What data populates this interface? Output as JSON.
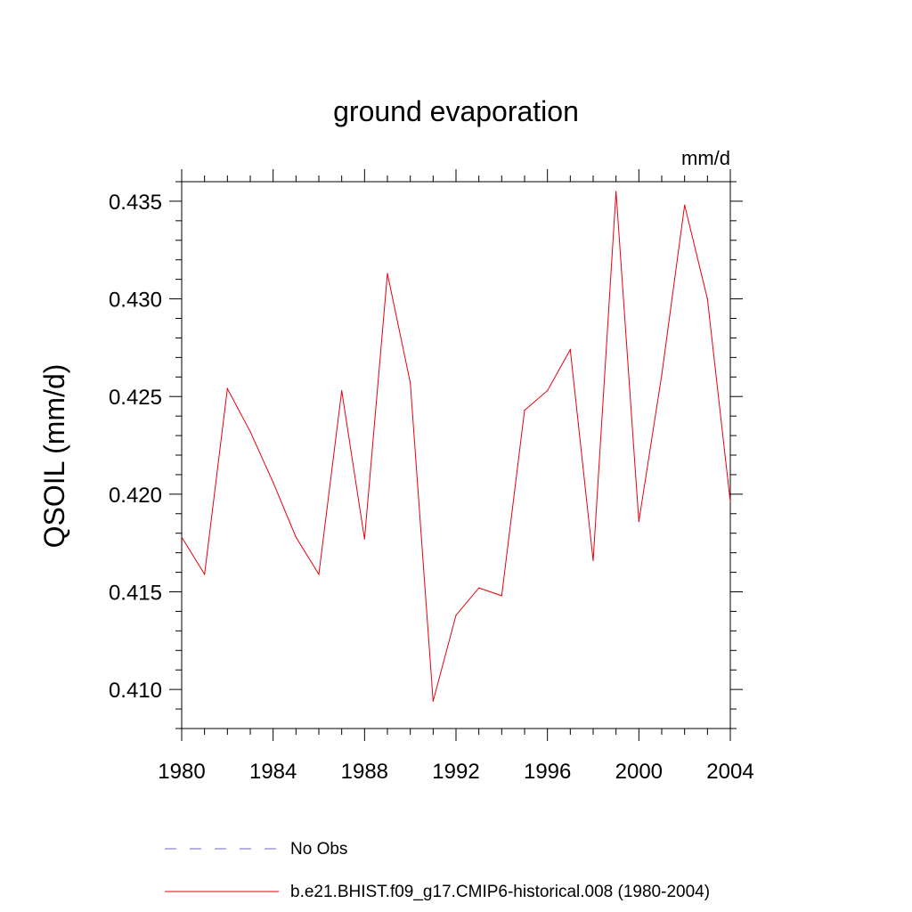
{
  "chart_data": {
    "type": "line",
    "title": "ground evaporation",
    "units": "mm/d",
    "ylabel": "QSOIL  (mm/d)",
    "xlabel": "",
    "xlim": [
      1980,
      2004
    ],
    "ylim": [
      0.408,
      0.436
    ],
    "x_ticks": [
      1980,
      1984,
      1988,
      1992,
      1996,
      2000,
      2004
    ],
    "y_ticks": [
      "0.410",
      "0.415",
      "0.420",
      "0.425",
      "0.430",
      "0.435"
    ],
    "grid": false,
    "legend_position": "bottom",
    "series": [
      {
        "name": "b.e21.BHIST.f09_g17.CMIP6-historical.008 (1980-2004)",
        "color": "#e8000b",
        "style": "solid",
        "x": [
          1980,
          1981,
          1982,
          1983,
          1984,
          1985,
          1986,
          1987,
          1988,
          1989,
          1990,
          1991,
          1992,
          1993,
          1994,
          1995,
          1996,
          1997,
          1998,
          1999,
          2000,
          2001,
          2002,
          2003,
          2004
        ],
        "y": [
          0.4178,
          0.4159,
          0.4254,
          0.4232,
          0.4206,
          0.4178,
          0.4159,
          0.4253,
          0.4177,
          0.4313,
          0.4257,
          0.4094,
          0.4138,
          0.4152,
          0.4148,
          0.4243,
          0.4253,
          0.4274,
          0.4166,
          0.4355,
          0.4186,
          0.4261,
          0.4348,
          0.43,
          0.4196
        ]
      },
      {
        "name": "No Obs",
        "color": "#6a6ac8",
        "style": "dashed",
        "x": [],
        "y": []
      }
    ]
  }
}
